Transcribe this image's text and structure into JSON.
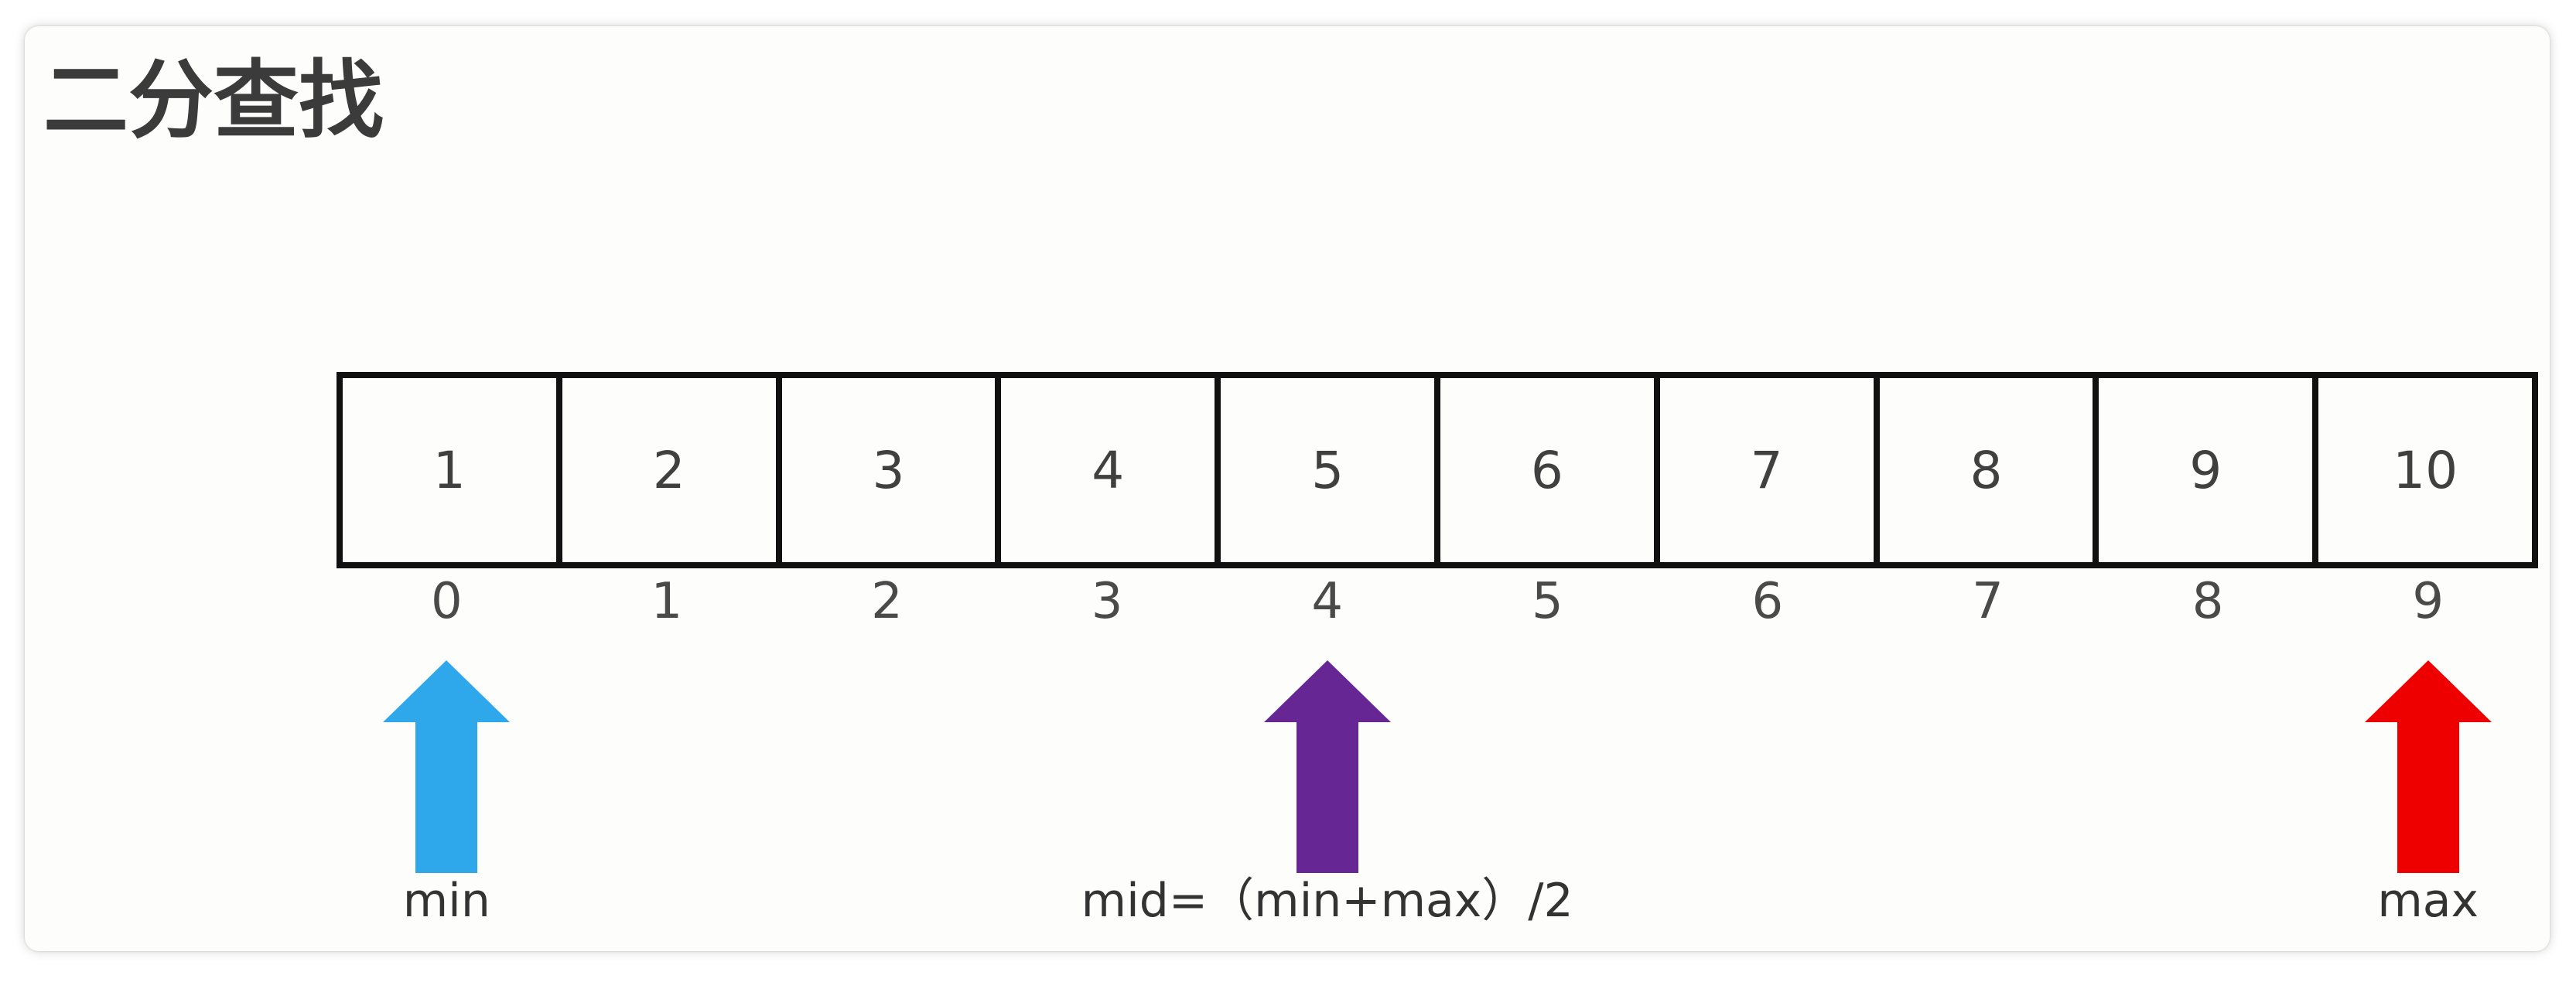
{
  "title": "二分查找",
  "array": {
    "values": [
      "1",
      "2",
      "3",
      "4",
      "5",
      "6",
      "7",
      "8",
      "9",
      "10"
    ],
    "indices": [
      "0",
      "1",
      "2",
      "3",
      "4",
      "5",
      "6",
      "7",
      "8",
      "9"
    ]
  },
  "pointers": [
    {
      "id": "min",
      "label": "min",
      "index": 0,
      "color": "#2ea8ea"
    },
    {
      "id": "mid",
      "label": "mid=（min+max）/2",
      "index": 4,
      "color": "#662795"
    },
    {
      "id": "max",
      "label": "max",
      "index": 9,
      "color": "#ee0000"
    }
  ]
}
